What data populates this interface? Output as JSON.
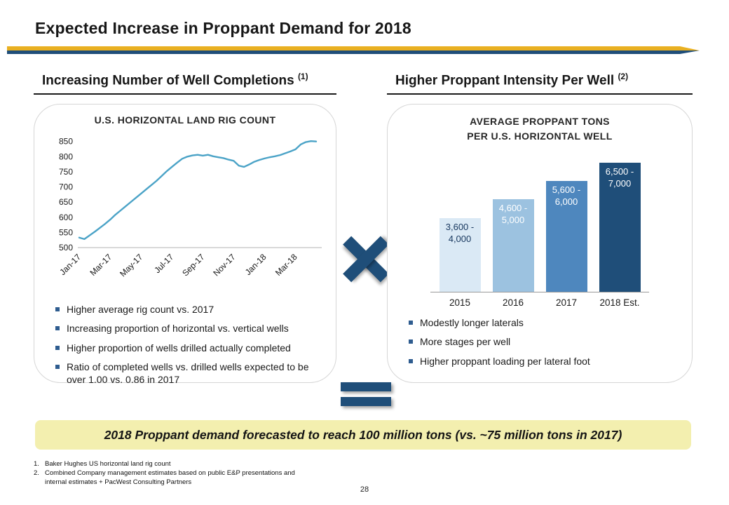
{
  "slide": {
    "title": "Expected Increase in Proppant Demand for 2018",
    "page_number": "28"
  },
  "left": {
    "heading": "Increasing Number of Well Completions",
    "heading_sup": "(1)",
    "bullets": [
      "Higher average rig count vs. 2017",
      "Increasing proportion of horizontal vs. vertical wells",
      "Higher proportion of wells drilled actually completed",
      "Ratio of completed wells vs. drilled wells expected to be over 1.00 vs. 0.86 in 2017"
    ]
  },
  "right": {
    "heading": "Higher Proppant Intensity Per Well",
    "heading_sup": "(2)",
    "chart_title_line1": "AVERAGE PROPPANT TONS",
    "chart_title_line2": "PER U.S. HORIZONTAL WELL",
    "bullets": [
      "Modestly longer laterals",
      "More stages per well",
      "Higher proppant loading per lateral foot"
    ]
  },
  "banner": {
    "text": "2018 Proppant demand forecasted to reach 100 million tons (vs. ~75 million tons in 2017)"
  },
  "footnotes": [
    {
      "num": "1.",
      "text": "Baker Hughes US horizontal land rig count"
    },
    {
      "num": "2.",
      "text": "Combined Company management estimates based on public E&P presentations and internal estimates + PacWest Consulting Partners"
    }
  ],
  "colors": {
    "navy": "#1F4E79",
    "gold": "#E9B021",
    "banner_bg": "#F3EFAF",
    "bullet_blue": "#2E5C8F"
  },
  "chart_data": [
    {
      "type": "line",
      "title": "U.S. HORIZONTAL LAND RIG COUNT",
      "series_name": "U.S. horizontal land rig count",
      "x_tick_labels": [
        "Jan-17",
        "Mar-17",
        "May-17",
        "Jul-17",
        "Sep-17",
        "Nov-17",
        "Jan-18",
        "Mar-18"
      ],
      "x_tick_indices": [
        0,
        6,
        12,
        18,
        24,
        30,
        36,
        42
      ],
      "y_ticks": [
        500,
        550,
        600,
        650,
        700,
        750,
        800,
        850
      ],
      "ylim": [
        500,
        870
      ],
      "grid": false,
      "legend": false,
      "line_color": "#4BA3C7",
      "values": [
        533,
        528,
        540,
        552,
        565,
        578,
        592,
        608,
        622,
        636,
        650,
        664,
        678,
        692,
        706,
        720,
        736,
        752,
        766,
        780,
        793,
        800,
        804,
        806,
        803,
        806,
        801,
        798,
        795,
        790,
        786,
        770,
        766,
        774,
        783,
        789,
        794,
        798,
        801,
        805,
        811,
        817,
        824,
        840,
        848,
        851,
        850
      ]
    },
    {
      "type": "bar",
      "title": "AVERAGE PROPPANT TONS PER U.S. HORIZONTAL WELL",
      "categories": [
        "2015",
        "2016",
        "2017",
        "2018 Est."
      ],
      "bar_labels": [
        "3,600 -\n4,000",
        "4,600 -\n5,000",
        "5,600 -\n6,000",
        "6,500 -\n7,000"
      ],
      "values": [
        4000,
        5000,
        6000,
        7000
      ],
      "ylim": [
        0,
        7600
      ],
      "grid": false,
      "legend": false,
      "bar_colors": [
        "#DAE9F5",
        "#9CC2E0",
        "#4E87BE",
        "#1F4E79"
      ],
      "label_colors": [
        "#17375E",
        "#FFFFFF",
        "#FFFFFF",
        "#FFFFFF"
      ]
    }
  ]
}
